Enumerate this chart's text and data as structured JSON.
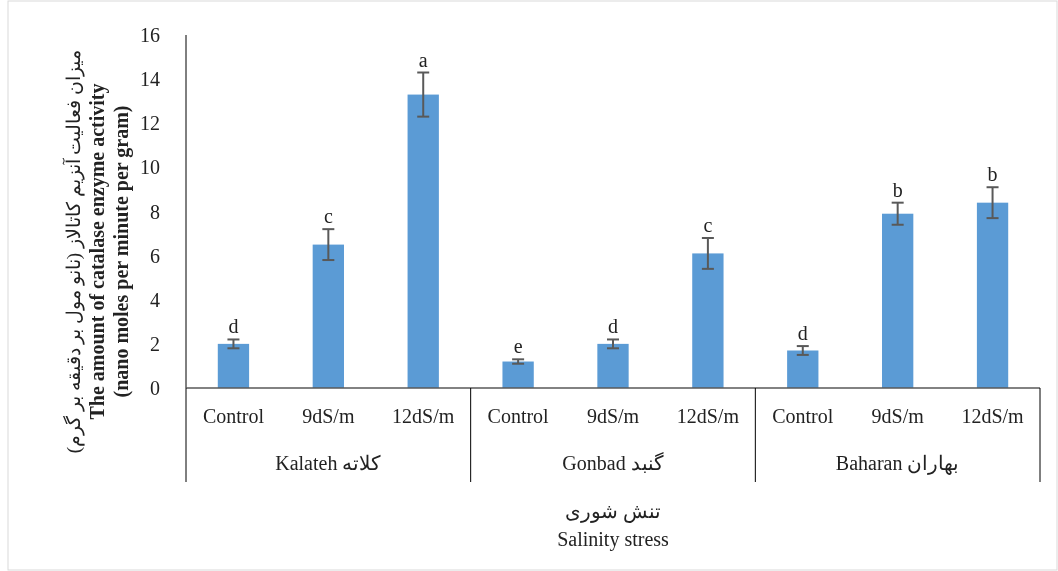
{
  "chart_data": {
    "type": "bar",
    "ylabel": "میزان فعالیت آنزیم کاتالاز (نانو مول بر دقیقه بر گرم)\nThe amount of catalase enzyme activity\n(nano moles per minute per gram)",
    "xlabel": "تنش شوری\nSalinity stress",
    "categories": [
      "Control",
      "9dS/m",
      "12dS/m",
      "Control",
      "9dS/m",
      "12dS/m",
      "Control",
      "9dS/m",
      "12dS/m"
    ],
    "annotations": [
      "Kalateh کلاته",
      "Gonbad گنبد",
      "Baharan بهاران"
    ],
    "values": [
      2.0,
      6.5,
      13.3,
      1.2,
      2.0,
      6.1,
      1.7,
      7.9,
      8.4
    ],
    "errors": [
      0.2,
      0.7,
      1.0,
      0.1,
      0.2,
      0.7,
      0.2,
      0.5,
      0.7
    ],
    "value_labels": [
      "d",
      "c",
      "a",
      "e",
      "d",
      "c",
      "d",
      "b",
      "b"
    ],
    "color": "#5b9bd5",
    "ylim": [
      0,
      16
    ],
    "yticks": [
      0,
      2,
      4,
      6,
      8,
      10,
      12,
      14,
      16
    ]
  }
}
